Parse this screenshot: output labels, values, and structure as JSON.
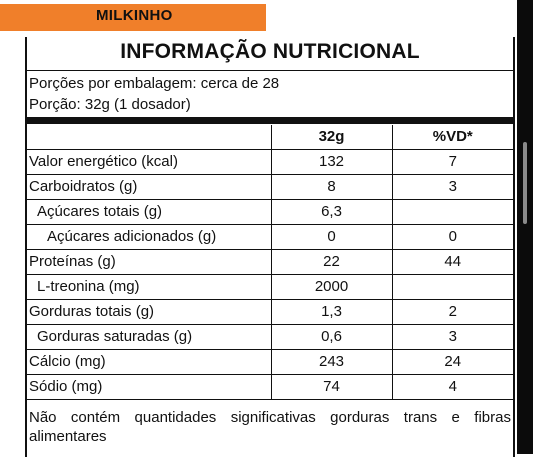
{
  "brand_tag": "MILKINHO",
  "title": "INFORMAÇÃO NUTRICIONAL",
  "servings_per_package": "Porções por embalagem: cerca de 28",
  "serving_size": "Porção: 32g (1 dosador)",
  "columns": [
    "",
    "32g",
    "%VD*"
  ],
  "rows": [
    {
      "label": "Valor energético (kcal)",
      "amount": "132",
      "dv": "7",
      "indent": 0
    },
    {
      "label": "Carboidratos (g)",
      "amount": "8",
      "dv": "3",
      "indent": 0
    },
    {
      "label": "Açúcares totais (g)",
      "amount": "6,3",
      "dv": "",
      "indent": 1
    },
    {
      "label": "Açúcares adicionados (g)",
      "amount": "0",
      "dv": "0",
      "indent": 2
    },
    {
      "label": "Proteínas (g)",
      "amount": "22",
      "dv": "44",
      "indent": 0
    },
    {
      "label": "L-treonina (mg)",
      "amount": "2000",
      "dv": "",
      "indent": 1
    },
    {
      "label": "Gorduras totais (g)",
      "amount": "1,3",
      "dv": "2",
      "indent": 0
    },
    {
      "label": "Gorduras saturadas (g)",
      "amount": "0,6",
      "dv": "3",
      "indent": 1
    },
    {
      "label": "Cálcio (mg)",
      "amount": "243",
      "dv": "24",
      "indent": 0
    },
    {
      "label": "Sódio (mg)",
      "amount": "74",
      "dv": "4",
      "indent": 0
    }
  ],
  "footnote": "Não contém quantidades significativas gorduras trans e fibras alimentares",
  "colors": {
    "tag": "#f07f2a",
    "text": "#111111",
    "scrollbar": "#0b0b0b",
    "scroll_thumb": "#8a8a8a"
  }
}
